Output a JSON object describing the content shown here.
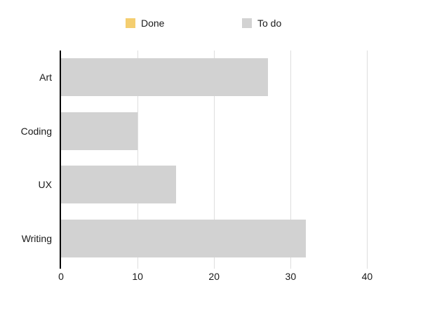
{
  "legend": {
    "items": [
      {
        "label": "Done",
        "color": "#F4CE70"
      },
      {
        "label": "To do",
        "color": "#D2D2D2"
      }
    ]
  },
  "chart_data": {
    "type": "bar",
    "orientation": "horizontal",
    "title": "",
    "xlabel": "",
    "ylabel": "",
    "categories": [
      "Art",
      "Coding",
      "UX",
      "Writing"
    ],
    "series": [
      {
        "name": "Done",
        "color": "#F4CE70",
        "values": [
          0,
          0,
          0,
          0
        ]
      },
      {
        "name": "To do",
        "color": "#D2D2D2",
        "values": [
          27,
          10,
          15,
          32
        ]
      }
    ],
    "x_ticks": [
      0,
      10,
      20,
      30,
      40
    ],
    "xlim": [
      0,
      45
    ],
    "grid": "vertical",
    "grid_color": "#DEDEDE",
    "axis_color": "#000000",
    "legend_position": "top"
  }
}
